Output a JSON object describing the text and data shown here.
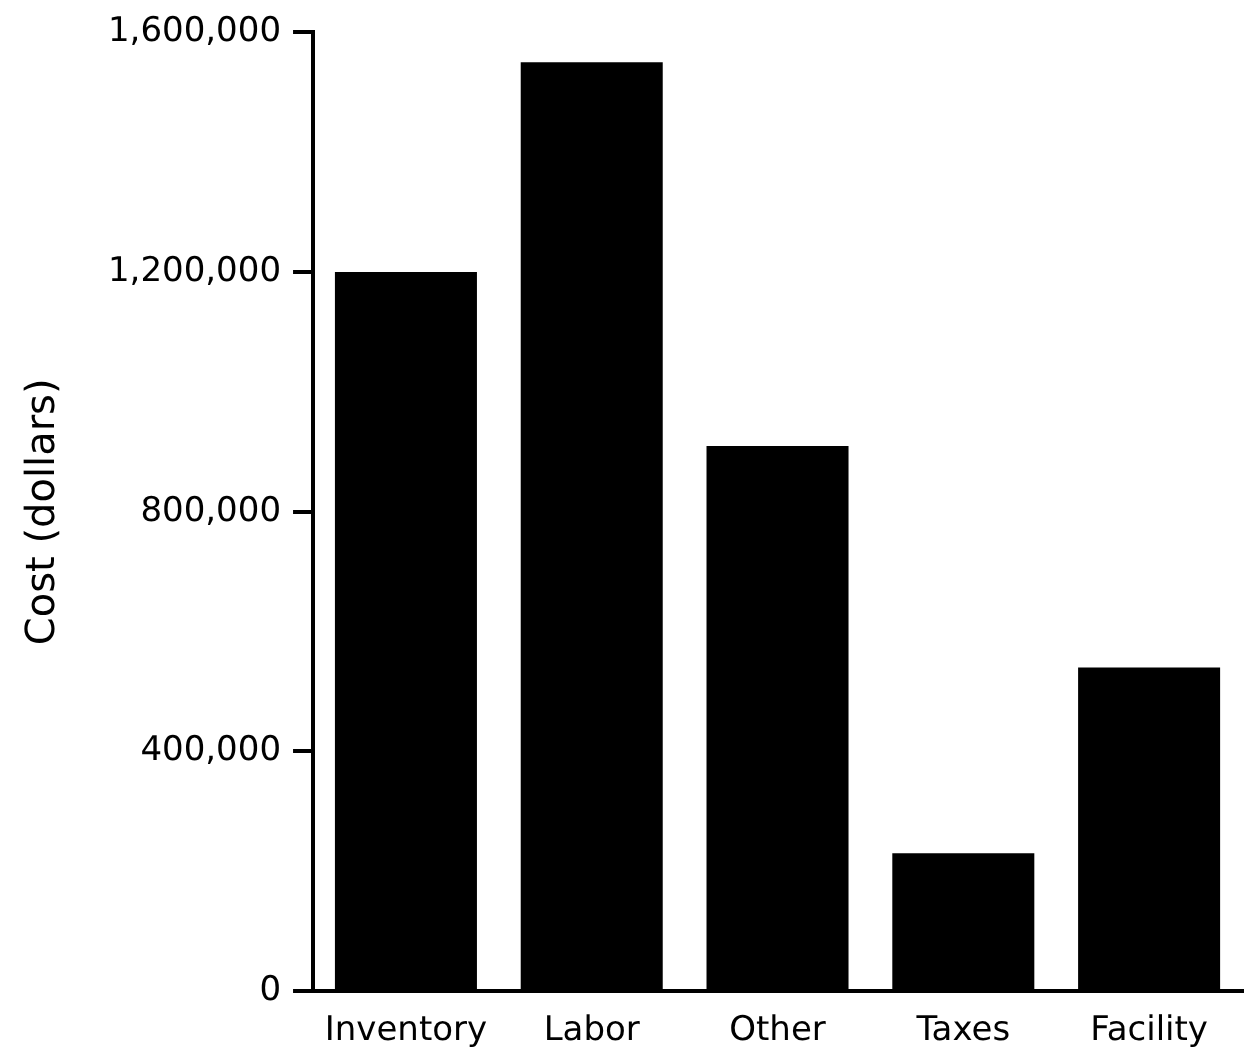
{
  "chart_data": {
    "type": "bar",
    "ylabel": "Cost (dollars)",
    "categories": [
      "Inventory",
      "Labor",
      "Other",
      "Taxes",
      "Facility"
    ],
    "values": [
      1200000,
      1550000,
      910000,
      230000,
      540000
    ],
    "color": "#000000",
    "ylim": [
      0,
      1600000
    ],
    "yticks": [
      {
        "value": 0,
        "label": "0"
      },
      {
        "value": 400000,
        "label": "400,000"
      },
      {
        "value": 800000,
        "label": "800,000"
      },
      {
        "value": 1200000,
        "label": "1,200,000"
      },
      {
        "value": 1600000,
        "label": "1,600,000"
      }
    ],
    "grid": false,
    "legend": false
  }
}
